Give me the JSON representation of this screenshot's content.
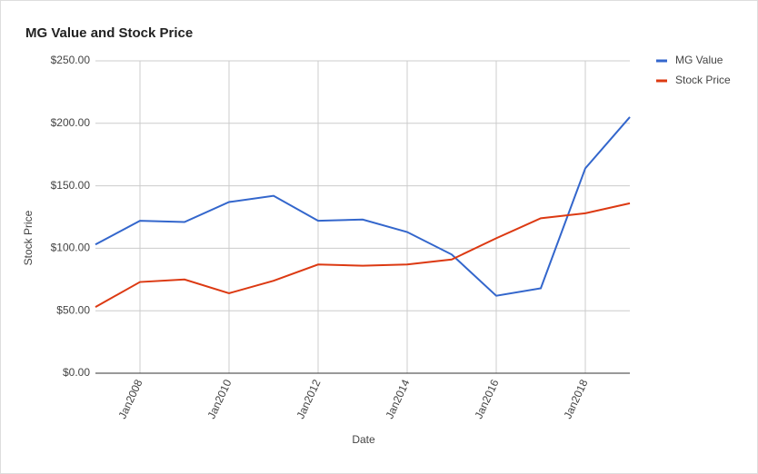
{
  "chart_data": {
    "type": "line",
    "title": "MG Value and Stock Price",
    "x_label": "Date",
    "y_label": "Stock Price",
    "x": [
      2007,
      2008,
      2009,
      2010,
      2011,
      2012,
      2013,
      2014,
      2015,
      2016,
      2017,
      2018,
      2019
    ],
    "xlim": [
      2007,
      2019
    ],
    "xticks": [
      {
        "value": 2008,
        "label": "Jan2008"
      },
      {
        "value": 2010,
        "label": "Jan2010"
      },
      {
        "value": 2012,
        "label": "Jan2012"
      },
      {
        "value": 2014,
        "label": "Jan2014"
      },
      {
        "value": 2016,
        "label": "Jan2016"
      },
      {
        "value": 2018,
        "label": "Jan2018"
      }
    ],
    "ylim": [
      0,
      250
    ],
    "yticks": [
      {
        "value": 0,
        "label": "$0.00"
      },
      {
        "value": 50,
        "label": "$50.00"
      },
      {
        "value": 100,
        "label": "$100.00"
      },
      {
        "value": 150,
        "label": "$150.00"
      },
      {
        "value": 200,
        "label": "$200.00"
      },
      {
        "value": 250,
        "label": "$250.00"
      }
    ],
    "grid": true,
    "legend": "right",
    "series": [
      {
        "name": "MG Value",
        "color": "#3366cc",
        "values": [
          103,
          122,
          121,
          137,
          142,
          122,
          123,
          113,
          95,
          62,
          68,
          164,
          205
        ]
      },
      {
        "name": "Stock Price",
        "color": "#dc3912",
        "values": [
          53,
          73,
          75,
          64,
          74,
          87,
          86,
          87,
          91,
          108,
          124,
          128,
          136
        ]
      }
    ]
  }
}
